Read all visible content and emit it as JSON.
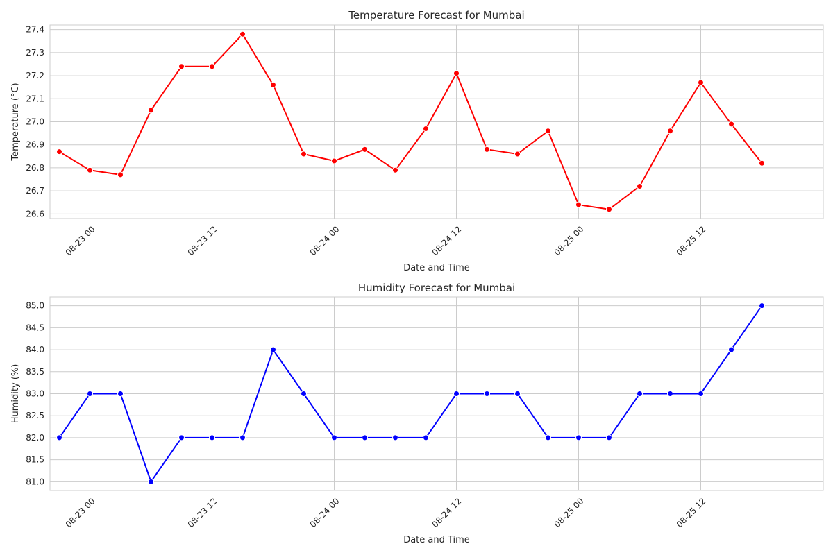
{
  "chart_data": [
    {
      "type": "line",
      "title": "Temperature Forecast for Mumbai",
      "xlabel": "Date and Time",
      "ylabel": "Temperature (°C)",
      "x": [
        "08-22 21:00",
        "08-23 00:00",
        "08-23 03:00",
        "08-23 06:00",
        "08-23 09:00",
        "08-23 12:00",
        "08-23 15:00",
        "08-23 18:00",
        "08-23 21:00",
        "08-24 00:00",
        "08-24 03:00",
        "08-24 06:00",
        "08-24 09:00",
        "08-24 12:00",
        "08-24 15:00",
        "08-24 18:00",
        "08-24 21:00",
        "08-25 00:00",
        "08-25 03:00",
        "08-25 06:00",
        "08-25 09:00",
        "08-25 12:00",
        "08-25 15:00",
        "08-25 18:00"
      ],
      "values": [
        26.87,
        26.79,
        26.77,
        27.05,
        27.24,
        27.24,
        27.38,
        27.16,
        26.86,
        26.83,
        26.88,
        26.79,
        26.97,
        27.21,
        26.88,
        26.86,
        26.96,
        26.64,
        26.62,
        26.72,
        26.96,
        27.17,
        26.99,
        26.82
      ],
      "xticks": [
        "08-23 00",
        "08-23 12",
        "08-24 00",
        "08-24 12",
        "08-25 00",
        "08-25 12"
      ],
      "yticks": [
        "26.6",
        "26.7",
        "26.8",
        "26.9",
        "27.0",
        "27.1",
        "27.2",
        "27.3",
        "27.4"
      ],
      "ylim": [
        26.58,
        27.42
      ],
      "color": "#ff0000",
      "grid": true
    },
    {
      "type": "line",
      "title": "Humidity Forecast for Mumbai",
      "xlabel": "Date and Time",
      "ylabel": "Humidity (%)",
      "x": [
        "08-22 21:00",
        "08-23 00:00",
        "08-23 03:00",
        "08-23 06:00",
        "08-23 09:00",
        "08-23 12:00",
        "08-23 15:00",
        "08-23 18:00",
        "08-23 21:00",
        "08-24 00:00",
        "08-24 03:00",
        "08-24 06:00",
        "08-24 09:00",
        "08-24 12:00",
        "08-24 15:00",
        "08-24 18:00",
        "08-24 21:00",
        "08-25 00:00",
        "08-25 03:00",
        "08-25 06:00",
        "08-25 09:00",
        "08-25 12:00",
        "08-25 15:00",
        "08-25 18:00"
      ],
      "values": [
        82,
        83,
        83,
        81,
        82,
        82,
        82,
        84,
        83,
        82,
        82,
        82,
        82,
        83,
        83,
        83,
        82,
        82,
        82,
        83,
        83,
        83,
        84,
        85
      ],
      "xticks": [
        "08-23 00",
        "08-23 12",
        "08-24 00",
        "08-24 12",
        "08-25 00",
        "08-25 12"
      ],
      "yticks": [
        "81.0",
        "81.5",
        "82.0",
        "82.5",
        "83.0",
        "83.5",
        "84.0",
        "84.5",
        "85.0"
      ],
      "ylim": [
        80.8,
        85.2
      ],
      "color": "#0000ff",
      "grid": true
    }
  ]
}
